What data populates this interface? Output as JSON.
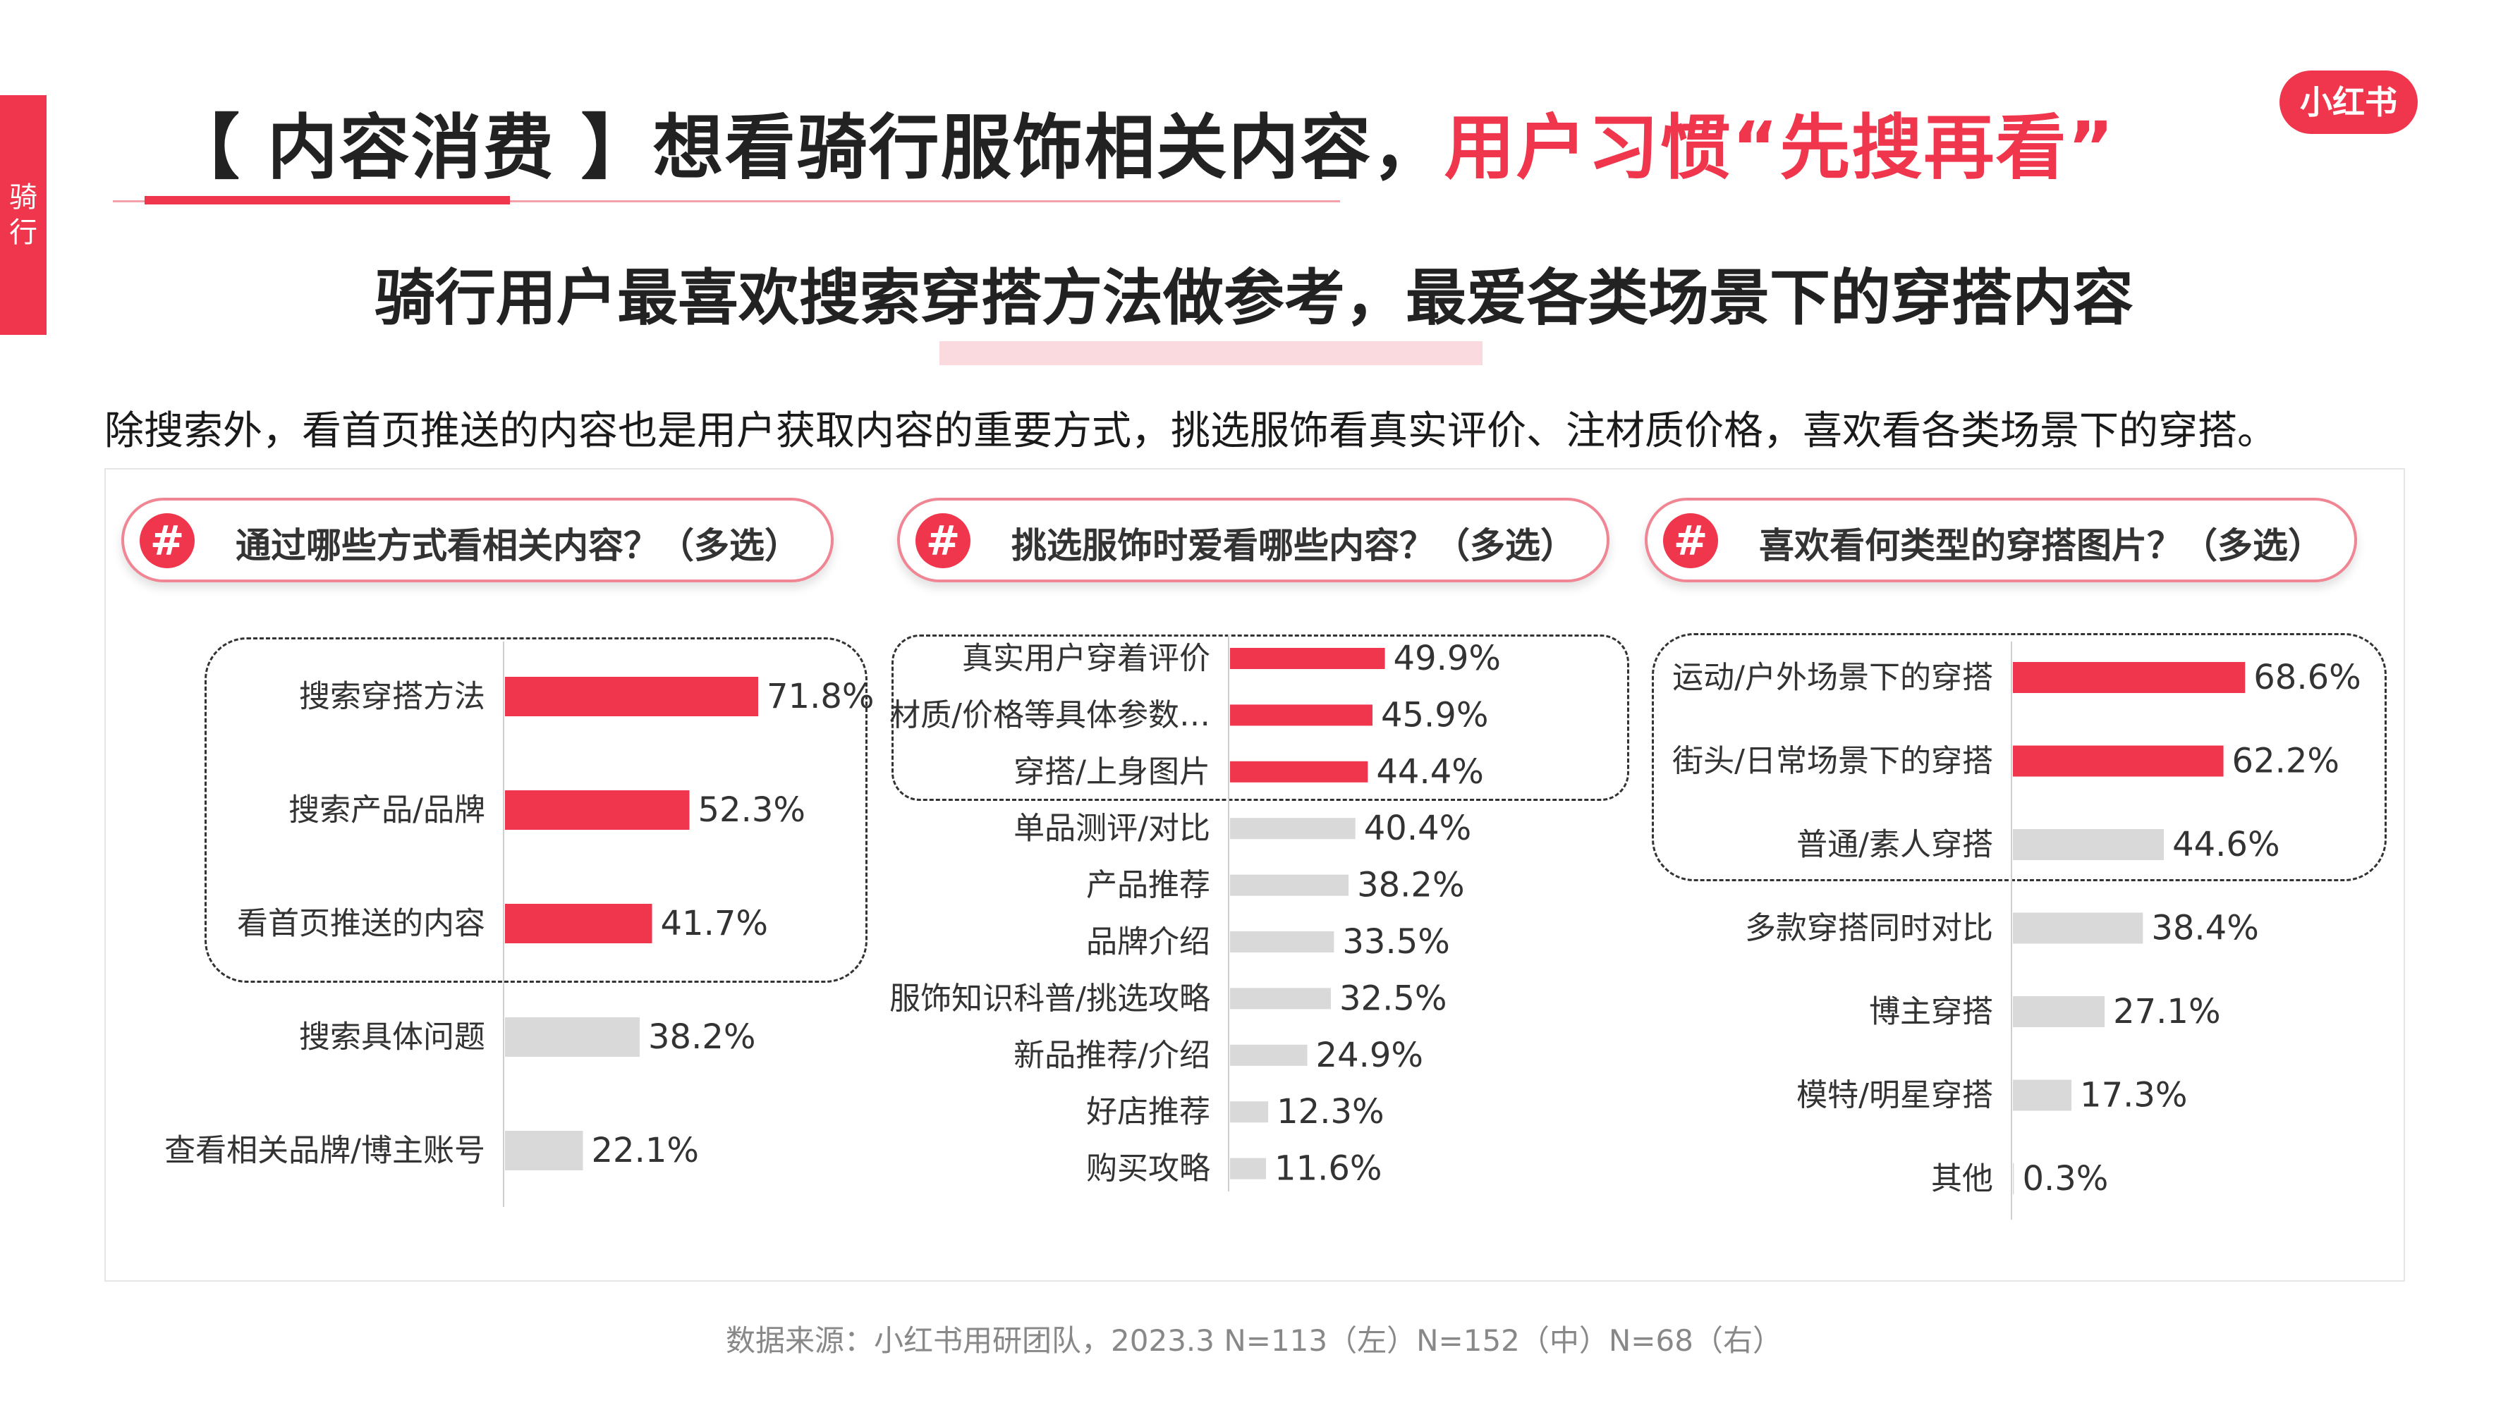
{
  "side_tab": {
    "label_1": "骑",
    "label_2": "行"
  },
  "header": {
    "title_main": "【 内容消费 】想看骑行服饰相关内容，",
    "title_highlight": "用户习惯“先搜再看”",
    "logo": "小红书"
  },
  "subtitle": "骑行用户最喜欢搜索穿搭方法做参考，最爱各类场景下的穿搭内容",
  "description": "除搜索外，看首页推送的内容也是用户获取内容的重要方式，挑选服饰看真实评价、注材质价格，喜欢看各类场景下的穿搭。",
  "questions": [
    {
      "icon": "hash-icon",
      "symbol": "#",
      "text": "通过哪些方式看相关内容？（多选）"
    },
    {
      "icon": "hash-icon",
      "symbol": "#",
      "text": "挑选服饰时爱看哪些内容？（多选）"
    },
    {
      "icon": "hash-icon",
      "symbol": "#",
      "text": "喜欢看何类型的穿搭图片？（多选）"
    }
  ],
  "colors": {
    "accent": "#f0364d",
    "muted_bar": "#d9d9d9",
    "text": "#333333"
  },
  "chart_data": [
    {
      "type": "bar",
      "orientation": "horizontal",
      "categories": [
        "搜索穿搭方法",
        "搜索产品/品牌",
        "看首页推送的内容",
        "搜索具体问题",
        "查看相关品牌/博主账号"
      ],
      "values": [
        71.8,
        52.3,
        41.7,
        38.2,
        22.1
      ],
      "labels": [
        "71.8%",
        "52.3%",
        "41.7%",
        "38.2%",
        "22.1%"
      ],
      "highlighted_count": 3,
      "unit": "%"
    },
    {
      "type": "bar",
      "orientation": "horizontal",
      "categories": [
        "真实用户穿着评价",
        "材质/价格等具体参数…",
        "穿搭/上身图片",
        "单品测评/对比",
        "产品推荐",
        "品牌介绍",
        "服饰知识科普/挑选攻略",
        "新品推荐/介绍",
        "好店推荐",
        "购买攻略"
      ],
      "values": [
        49.9,
        45.9,
        44.4,
        40.4,
        38.2,
        33.5,
        32.5,
        24.9,
        12.3,
        11.6
      ],
      "labels": [
        "49.9%",
        "45.9%",
        "44.4%",
        "40.4%",
        "38.2%",
        "33.5%",
        "32.5%",
        "24.9%",
        "12.3%",
        "11.6%"
      ],
      "highlighted_count": 3,
      "unit": "%"
    },
    {
      "type": "bar",
      "orientation": "horizontal",
      "categories": [
        "运动/户外场景下的穿搭",
        "街头/日常场景下的穿搭",
        "普通/素人穿搭",
        "多款穿搭同时对比",
        "博主穿搭",
        "模特/明星穿搭",
        "其他"
      ],
      "values": [
        68.6,
        62.2,
        44.6,
        38.4,
        27.1,
        17.3,
        0.3
      ],
      "labels": [
        "68.6%",
        "62.2%",
        "44.6%",
        "38.4%",
        "27.1%",
        "17.3%",
        "0.3%"
      ],
      "highlighted_count": 2,
      "unit": "%"
    }
  ],
  "footer": "数据来源：小红书用研团队，2023.3 N=113（左）N=152（中）N=68（右）"
}
